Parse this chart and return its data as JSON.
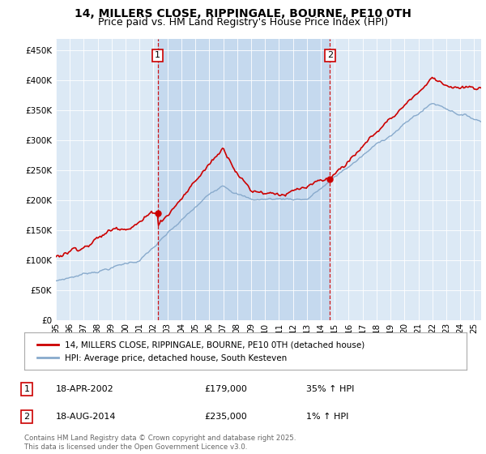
{
  "title": "14, MILLERS CLOSE, RIPPINGALE, BOURNE, PE10 0TH",
  "subtitle": "Price paid vs. HM Land Registry's House Price Index (HPI)",
  "title_fontsize": 10,
  "subtitle_fontsize": 9,
  "background_color": "#ffffff",
  "plot_bg_color": "#dce9f5",
  "shade_color": "#c5d9ee",
  "red_color": "#cc0000",
  "blue_color": "#88aacc",
  "ylim": [
    0,
    470000
  ],
  "yticks": [
    0,
    50000,
    100000,
    150000,
    200000,
    250000,
    300000,
    350000,
    400000,
    450000
  ],
  "purchase1_date": "18-APR-2002",
  "purchase1_price": 179000,
  "purchase1_hpi_pct": "35% ↑ HPI",
  "purchase2_date": "18-AUG-2014",
  "purchase2_price": 235000,
  "purchase2_hpi_pct": "1% ↑ HPI",
  "purchase1_x": 2002.3,
  "purchase2_x": 2014.65,
  "legend_label1": "14, MILLERS CLOSE, RIPPINGALE, BOURNE, PE10 0TH (detached house)",
  "legend_label2": "HPI: Average price, detached house, South Kesteven",
  "footer": "Contains HM Land Registry data © Crown copyright and database right 2025.\nThis data is licensed under the Open Government Licence v3.0.",
  "xmin": 1995.0,
  "xmax": 2025.5
}
